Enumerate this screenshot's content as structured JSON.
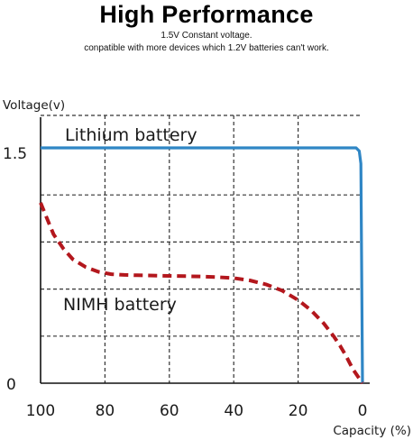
{
  "header": {
    "title": "High Performance",
    "subtitle_line1": "1.5V Constant voltage.",
    "subtitle_line2": "conpatible with more devices which 1.2V batteries can't work."
  },
  "chart_data": {
    "type": "line",
    "xlabel": "Capacity (%)",
    "ylabel": "Voltage(v)",
    "x_ticks": [
      "100",
      "80",
      "60",
      "40",
      "20",
      "0"
    ],
    "y_ticks": [
      "1.5",
      "0"
    ],
    "xlim": [
      100,
      0
    ],
    "ylim": [
      0,
      1.5
    ],
    "grid": true,
    "series": [
      {
        "name": "Lithium battery",
        "color": "#2f86c5",
        "style": "solid",
        "x": [
          100,
          90,
          80,
          70,
          60,
          50,
          40,
          30,
          20,
          10,
          2,
          1,
          0.5,
          0
        ],
        "y": [
          1.5,
          1.5,
          1.5,
          1.5,
          1.5,
          1.5,
          1.5,
          1.5,
          1.5,
          1.5,
          1.5,
          1.48,
          1.4,
          0
        ]
      },
      {
        "name": "NIMH battery",
        "color": "#b3171d",
        "style": "dashed",
        "x": [
          100,
          98,
          96,
          93,
          90,
          86,
          82,
          78,
          74,
          70,
          65,
          60,
          55,
          50,
          45,
          40,
          35,
          30,
          25,
          20,
          16,
          12,
          9,
          7,
          5,
          4,
          3,
          2,
          1,
          0
        ],
        "y": [
          1.15,
          1.05,
          0.95,
          0.86,
          0.79,
          0.74,
          0.71,
          0.695,
          0.69,
          0.688,
          0.686,
          0.684,
          0.682,
          0.68,
          0.676,
          0.67,
          0.655,
          0.63,
          0.59,
          0.53,
          0.465,
          0.38,
          0.3,
          0.24,
          0.17,
          0.13,
          0.09,
          0.06,
          0.03,
          0
        ]
      }
    ]
  }
}
